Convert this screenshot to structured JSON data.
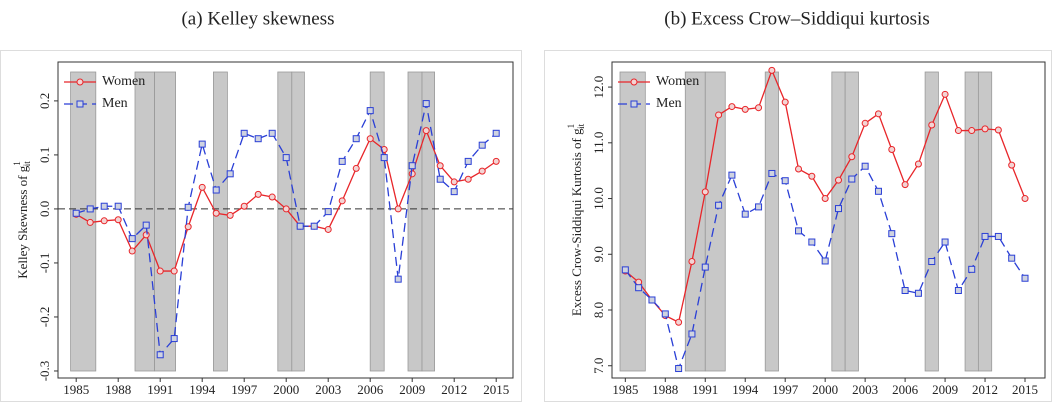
{
  "chart_data": [
    {
      "type": "line",
      "title": "(a) Kelley skewness",
      "ylabel": "Kelley Skewness of g",
      "ylabel_sup": "1",
      "ylabel_sub": "it",
      "x": [
        1985,
        1986,
        1987,
        1988,
        1989,
        1990,
        1991,
        1992,
        1993,
        1994,
        1995,
        1996,
        1997,
        1998,
        1999,
        2000,
        2001,
        2002,
        2003,
        2004,
        2005,
        2006,
        2007,
        2008,
        2009,
        2010,
        2011,
        2012,
        2013,
        2014,
        2015
      ],
      "series": [
        {
          "name": "Women",
          "color": "#e8262a",
          "marker": "circle",
          "dashed": false,
          "values": [
            -0.01,
            -0.025,
            -0.022,
            -0.02,
            -0.078,
            -0.048,
            -0.115,
            -0.115,
            -0.033,
            0.04,
            -0.008,
            -0.012,
            0.005,
            0.027,
            0.022,
            0.0,
            -0.032,
            -0.032,
            -0.038,
            0.015,
            0.075,
            0.13,
            0.11,
            0.0,
            0.065,
            0.145,
            0.08,
            0.05,
            0.055,
            0.07,
            0.088
          ]
        },
        {
          "name": "Men",
          "color": "#2a3fd6",
          "marker": "square",
          "dashed": true,
          "values": [
            -0.008,
            0.0,
            0.005,
            0.005,
            -0.055,
            -0.03,
            -0.27,
            -0.24,
            0.003,
            0.12,
            0.035,
            0.065,
            0.14,
            0.13,
            0.14,
            0.095,
            -0.032,
            -0.032,
            -0.005,
            0.088,
            0.13,
            0.182,
            0.095,
            -0.13,
            0.08,
            0.195,
            0.055,
            0.032,
            0.088,
            0.118,
            0.14
          ]
        }
      ],
      "xlim": [
        1983.7,
        2016.2
      ],
      "xticks": [
        1985,
        1988,
        1991,
        1994,
        1997,
        2000,
        2003,
        2006,
        2009,
        2012,
        2015
      ],
      "ylim": [
        -0.313,
        0.272
      ],
      "yticks": [
        -0.3,
        -0.2,
        -0.1,
        {
          "value": 0,
          "label": "0.0"
        },
        0.1,
        0.2
      ],
      "hline": 0,
      "shaded_spans": [
        [
          1984.6,
          1986.4
        ],
        [
          1989.2,
          1990.6
        ],
        [
          1990.6,
          1992.1
        ],
        [
          1994.8,
          1995.8
        ],
        [
          1999.4,
          2000.4
        ],
        [
          2000.4,
          2001.3
        ],
        [
          2006.0,
          2007.0
        ],
        [
          2008.7,
          2009.7
        ],
        [
          2009.7,
          2010.6
        ]
      ],
      "legend": "upper-left"
    },
    {
      "type": "line",
      "title": "(b) Excess Crow–Siddiqui kurtosis",
      "ylabel": "Excess Crow-Siddiqui Kurtosis of g",
      "ylabel_sup": "1",
      "ylabel_sub": "it",
      "x": [
        1985,
        1986,
        1987,
        1988,
        1989,
        1990,
        1991,
        1992,
        1993,
        1994,
        1995,
        1996,
        1997,
        1998,
        1999,
        2000,
        2001,
        2002,
        2003,
        2004,
        2005,
        2006,
        2007,
        2008,
        2009,
        2010,
        2011,
        2012,
        2013,
        2014,
        2015
      ],
      "series": [
        {
          "name": "Women",
          "color": "#e8262a",
          "marker": "circle",
          "dashed": false,
          "values": [
            8.7,
            8.5,
            8.18,
            7.9,
            7.78,
            8.87,
            10.12,
            11.5,
            11.65,
            11.6,
            11.63,
            12.3,
            11.73,
            10.53,
            10.4,
            10.0,
            10.33,
            10.75,
            11.35,
            11.52,
            10.88,
            10.25,
            10.62,
            11.32,
            11.87,
            11.22,
            11.22,
            11.25,
            11.23,
            10.6,
            10.0
          ]
        },
        {
          "name": "Men",
          "color": "#2a3fd6",
          "marker": "square",
          "dashed": true,
          "values": [
            8.72,
            8.4,
            8.18,
            7.93,
            6.95,
            7.57,
            8.77,
            9.88,
            10.42,
            9.72,
            9.85,
            10.45,
            10.32,
            9.42,
            9.22,
            8.88,
            9.82,
            10.35,
            10.58,
            10.13,
            9.37,
            8.35,
            8.3,
            8.87,
            9.22,
            8.35,
            8.73,
            9.32,
            9.32,
            8.93,
            8.57
          ]
        }
      ],
      "xlim": [
        1984.0,
        2016.5
      ],
      "xticks": [
        1985,
        1988,
        1991,
        1994,
        1997,
        2000,
        2003,
        2006,
        2009,
        2012,
        2015
      ],
      "ylim": [
        6.78,
        12.45
      ],
      "yticks": [
        {
          "value": 7,
          "label": "7.0"
        },
        {
          "value": 8,
          "label": "8.0"
        },
        {
          "value": 9,
          "label": "9.0"
        },
        {
          "value": 10,
          "label": "10.0"
        },
        {
          "value": 11,
          "label": "11.0"
        },
        {
          "value": 12,
          "label": "12.0"
        }
      ],
      "shaded_spans": [
        [
          1984.6,
          1986.5
        ],
        [
          1989.5,
          1991.0
        ],
        [
          1991.0,
          1992.5
        ],
        [
          1995.5,
          1996.5
        ],
        [
          2000.5,
          2001.5
        ],
        [
          2001.5,
          2002.5
        ],
        [
          2007.5,
          2008.5
        ],
        [
          2010.5,
          2011.5
        ],
        [
          2011.5,
          2012.5
        ]
      ],
      "legend": "upper-left"
    }
  ]
}
